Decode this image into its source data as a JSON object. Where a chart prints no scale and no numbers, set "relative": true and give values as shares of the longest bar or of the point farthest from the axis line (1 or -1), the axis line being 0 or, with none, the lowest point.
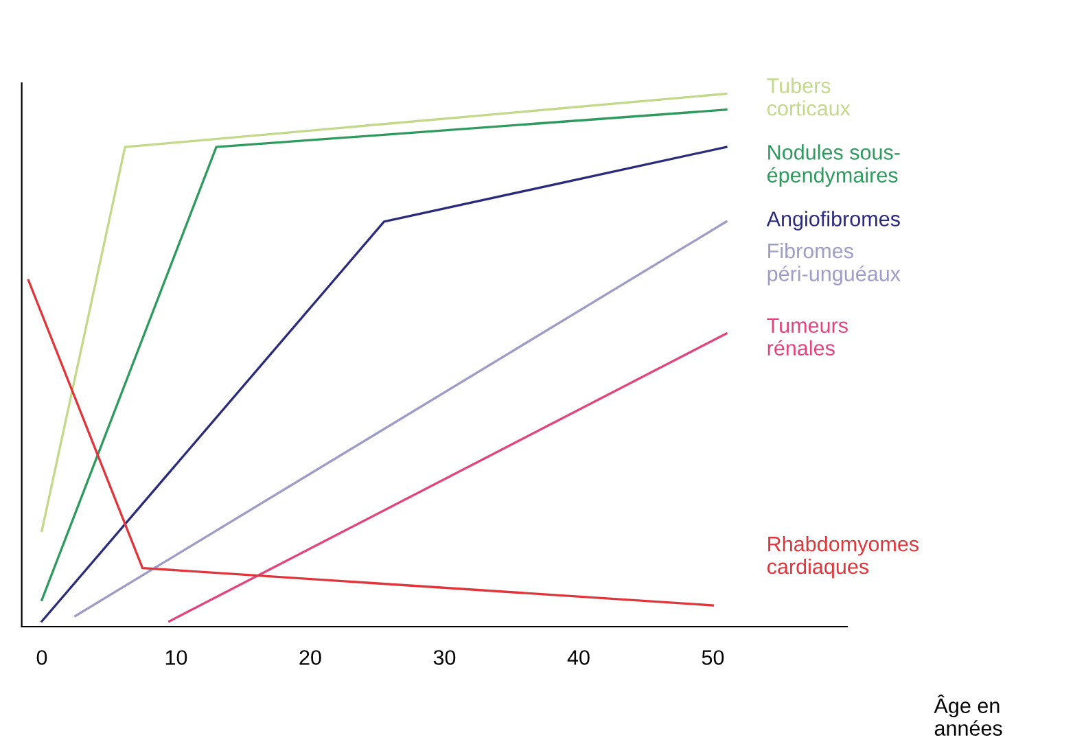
{
  "chart_data": {
    "type": "line",
    "relative": true,
    "xlabel": "Âge en\nannées",
    "xlim": [
      -1.5,
      60
    ],
    "xticks": [
      0,
      10,
      20,
      30,
      40,
      50
    ],
    "grid": false,
    "legend": false,
    "marker": "none",
    "line_style": "solid",
    "series": [
      {
        "name": "Tubers\ncorticaux",
        "color": "#c3d98a",
        "x": [
          0,
          6.2,
          51
        ],
        "values": [
          0.18,
          0.9,
          1.0
        ]
      },
      {
        "name": "Nodules sous-\népendymaires",
        "color": "#2e9a5e",
        "x": [
          0,
          13,
          51
        ],
        "values": [
          0.05,
          0.9,
          0.97
        ]
      },
      {
        "name": "Angiofibromes",
        "color": "#2b2b7e",
        "x": [
          0,
          25.5,
          51
        ],
        "values": [
          0.01,
          0.76,
          0.9
        ]
      },
      {
        "name": "Fibromes\npéri-unguéaux",
        "color": "#9d9cc9",
        "x": [
          2.5,
          51
        ],
        "values": [
          0.02,
          0.76
        ]
      },
      {
        "name": "Tumeurs\nrénales",
        "color": "#e2457d",
        "x": [
          9.5,
          51
        ],
        "values": [
          0.01,
          0.55
        ]
      },
      {
        "name": "Rhabdomyomes\ncardiaques",
        "color": "#e0353a",
        "x": [
          -1,
          7.5,
          50
        ],
        "values": [
          0.65,
          0.11,
          0.04
        ]
      }
    ]
  }
}
